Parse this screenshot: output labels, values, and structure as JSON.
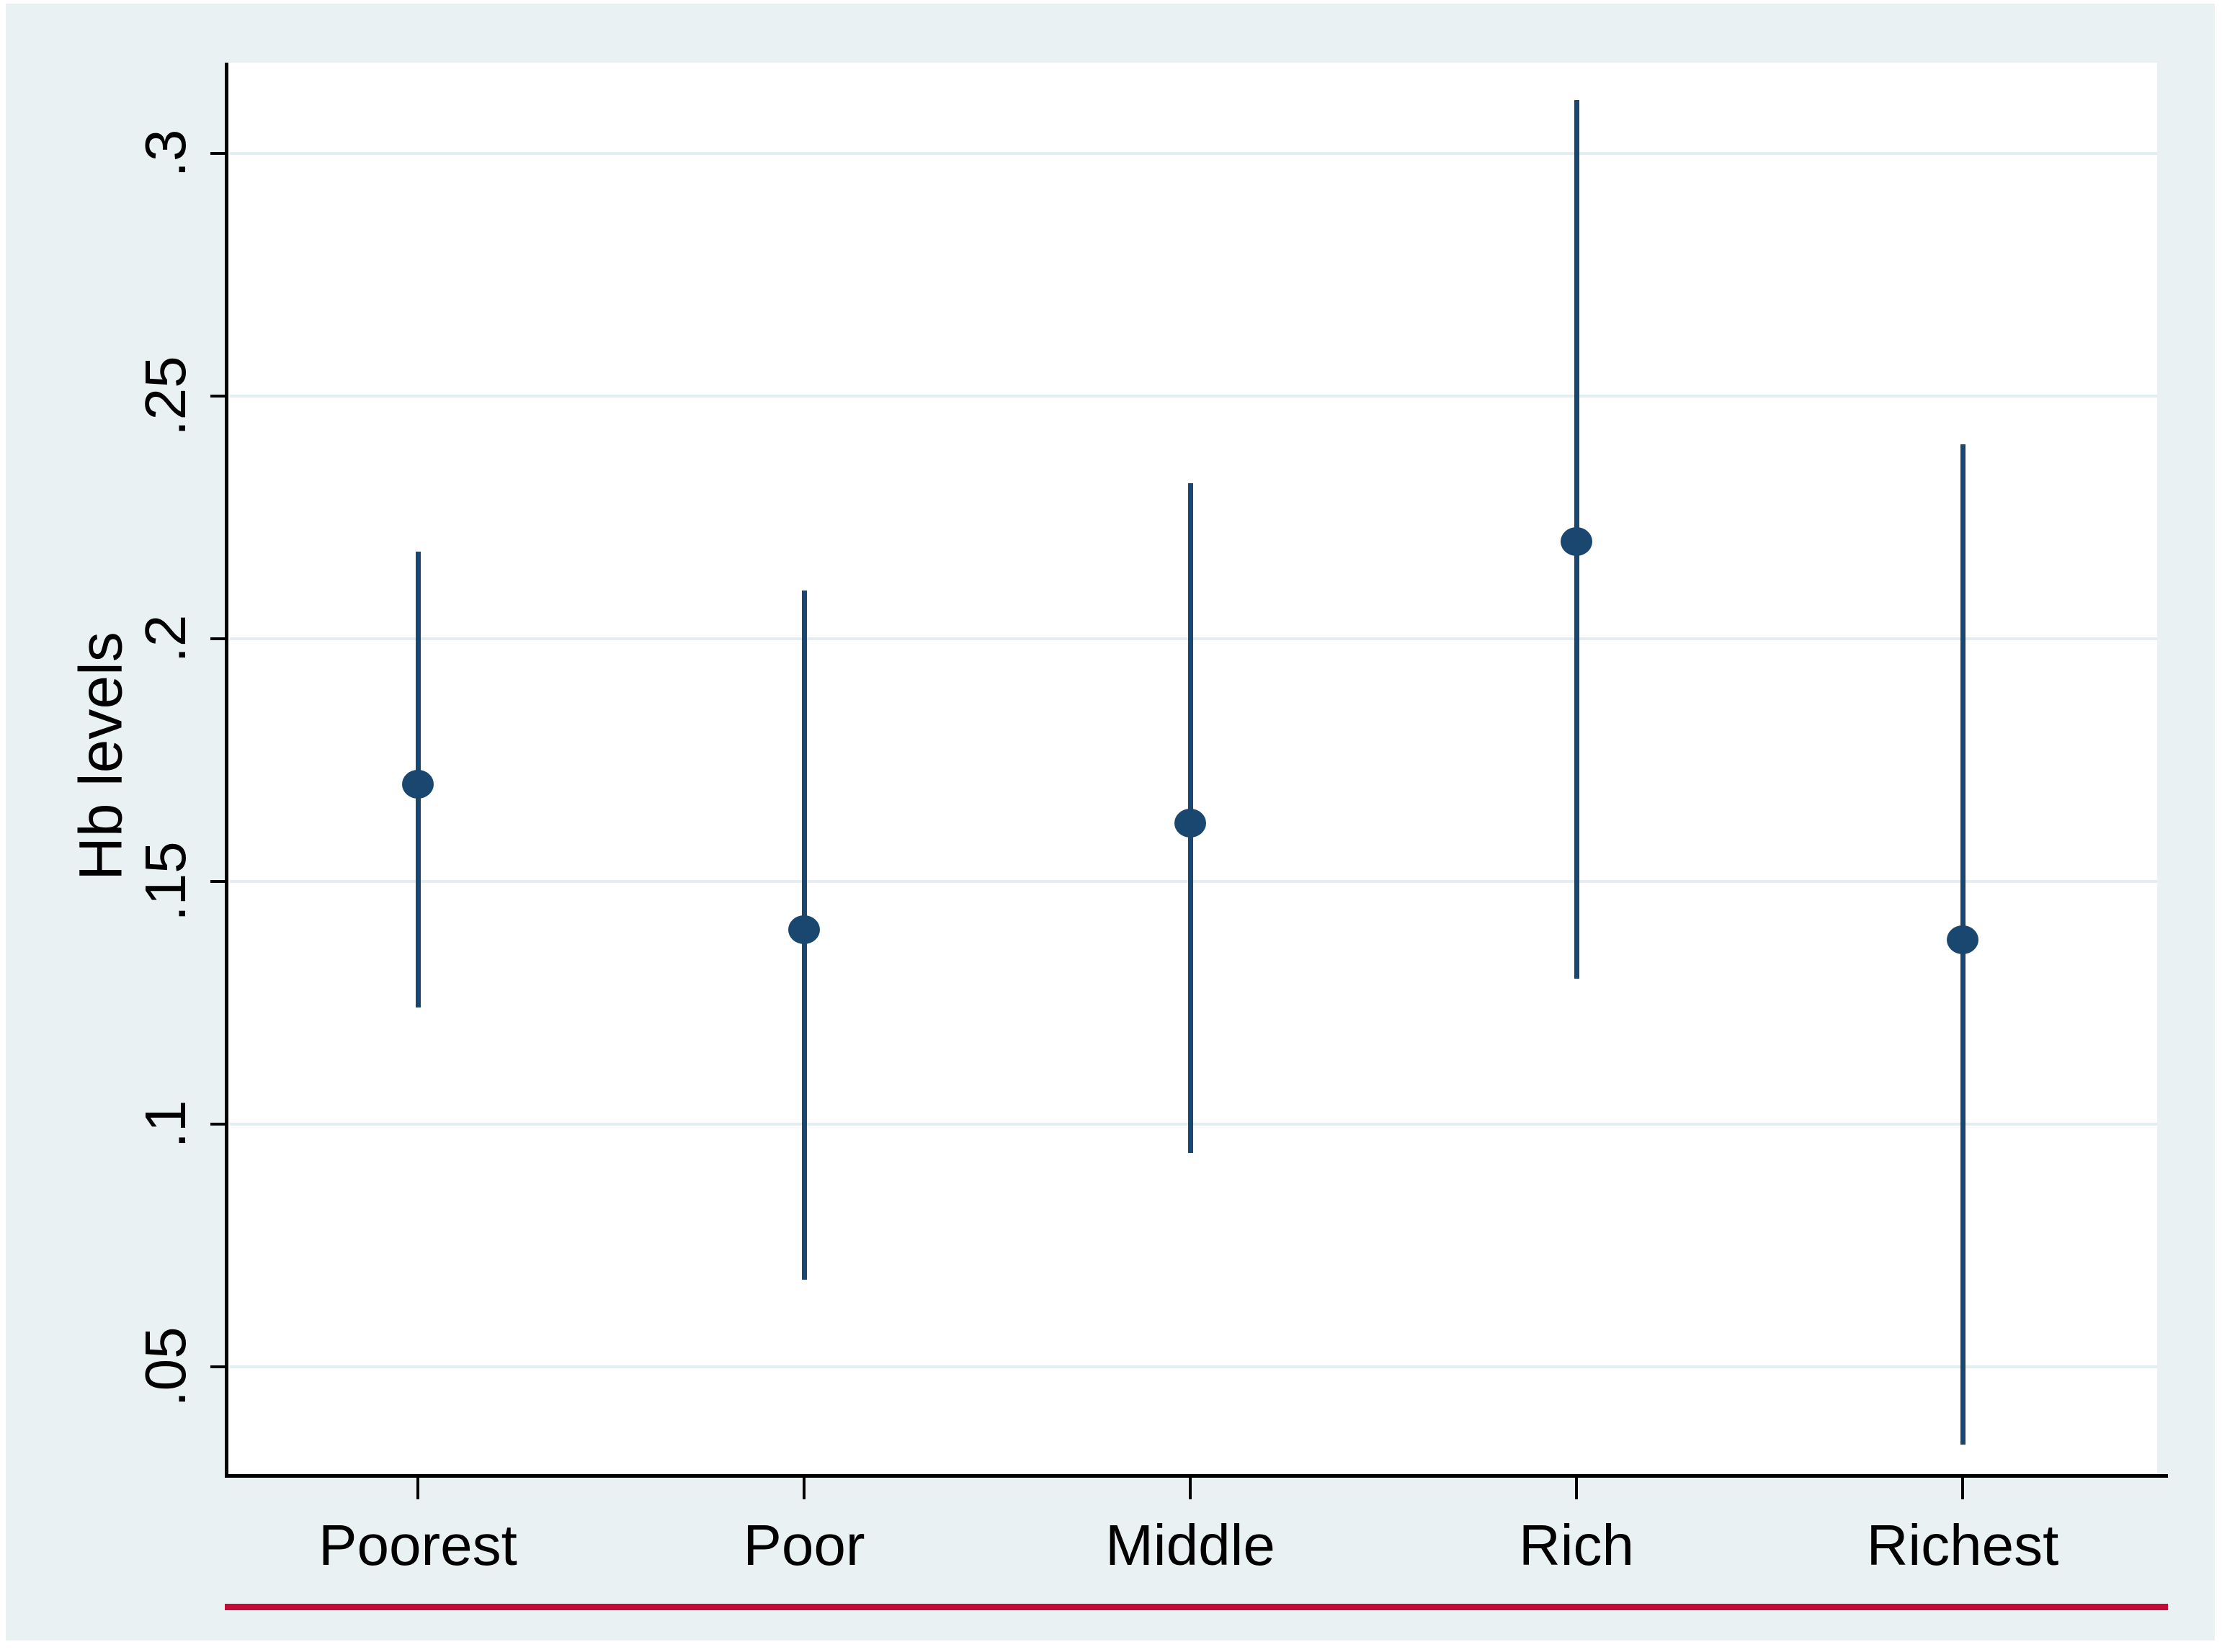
{
  "figure": {
    "background_color": "#EAF1F3",
    "plot_background": "#FFFFFF",
    "series_color": "#1A476F",
    "baseline_color": "#C20B38",
    "gridline_color": "#E3EDF2",
    "axis_color": "#000000"
  },
  "chart_data": {
    "type": "scatter",
    "subtype": "point-estimate-with-confidence-interval",
    "title": "",
    "xlabel": "",
    "ylabel": "Hb levels",
    "categories": [
      "Poorest",
      "Poor",
      "Middle",
      "Rich",
      "Richest"
    ],
    "series": [
      {
        "name": "Point estimate",
        "values": [
          0.17,
          0.14,
          0.162,
          0.22,
          0.138
        ]
      }
    ],
    "ci_low": [
      0.124,
      0.068,
      0.094,
      0.13,
      0.034
    ],
    "ci_high": [
      0.218,
      0.21,
      0.232,
      0.311,
      0.24
    ],
    "ylim": [
      0.028,
      0.319
    ],
    "yticks": [
      0.05,
      0.1,
      0.15,
      0.2,
      0.25,
      0.3
    ],
    "ytick_labels": [
      ".05",
      ".1",
      ".15",
      ".2",
      ".25",
      ".3"
    ],
    "grid": true,
    "legend": false,
    "gridlines": "horizontal-only"
  }
}
